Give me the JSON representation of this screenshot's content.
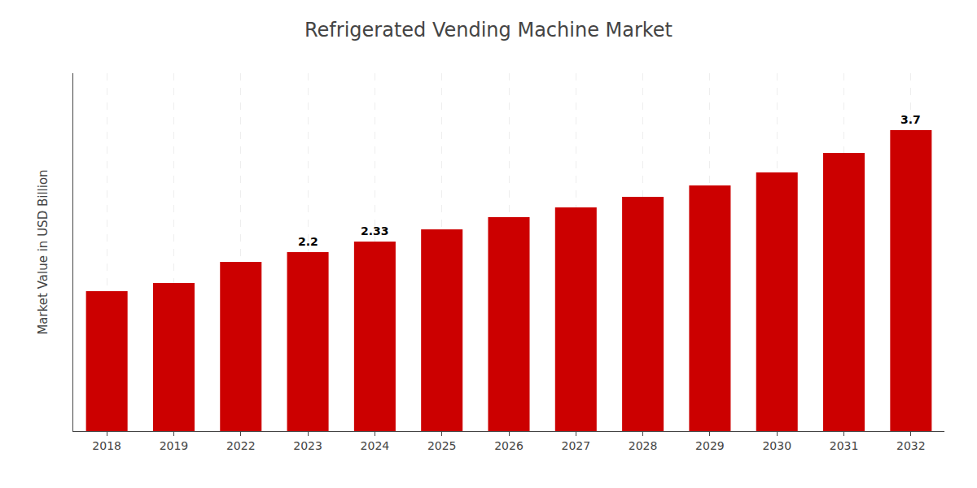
{
  "chart_data": {
    "type": "bar",
    "title": "Refrigerated Vending Machine Market",
    "ylabel": "Market Value in USD Billion",
    "categories": [
      "2018",
      "2019",
      "2022",
      "2023",
      "2024",
      "2025",
      "2026",
      "2027",
      "2028",
      "2029",
      "2030",
      "2031",
      "2032"
    ],
    "values": [
      1.72,
      1.82,
      2.08,
      2.2,
      2.33,
      2.48,
      2.63,
      2.75,
      2.88,
      3.02,
      3.18,
      3.42,
      3.7
    ],
    "color": "#cc0000",
    "ylim": [
      0,
      4.4
    ],
    "yticks": [],
    "tick_labels": "x",
    "grid": true,
    "annotations": [
      {
        "x": "2023",
        "text": "2.2"
      },
      {
        "x": "2024",
        "text": "2.33"
      },
      {
        "x": "2032",
        "text": "3.7"
      }
    ]
  }
}
